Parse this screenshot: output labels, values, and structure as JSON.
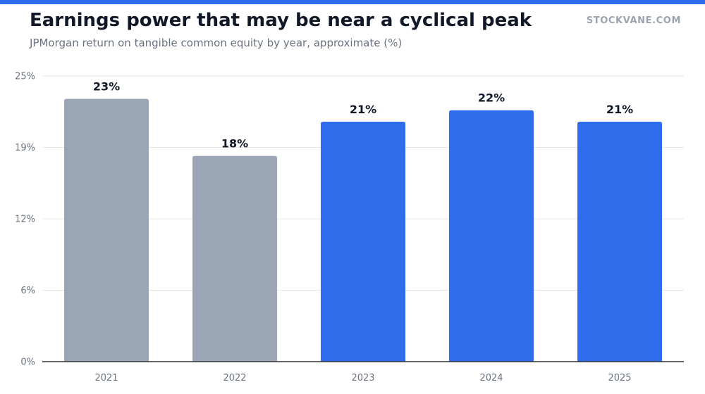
{
  "header": {
    "title": "Earnings power that may be near a cyclical peak",
    "subtitle": "JPMorgan return on tangible common equity by year, approximate (%)",
    "brand": "STOCKVANE.COM"
  },
  "colors": {
    "accent": "#2f6ded",
    "historical": "#9aa6b5",
    "recent": "#2f6ded",
    "grid": "#e5e7eb",
    "axis": "#333333"
  },
  "chart_data": {
    "type": "bar",
    "title": "Earnings power that may be near a cyclical peak",
    "subtitle": "JPMorgan return on tangible common equity by year, approximate (%)",
    "xlabel": "",
    "ylabel": "",
    "categories": [
      "2021",
      "2022",
      "2023",
      "2024",
      "2025"
    ],
    "values": [
      23,
      18,
      21,
      22,
      21
    ],
    "data_labels": [
      "23%",
      "18%",
      "21%",
      "22%",
      "21%"
    ],
    "bar_color_groups": [
      "historical",
      "historical",
      "recent",
      "recent",
      "recent"
    ],
    "y_ticks": [
      0,
      6.25,
      12.5,
      18.75,
      25
    ],
    "y_tick_labels": [
      "0%",
      "6%",
      "12%",
      "19%",
      "25%"
    ],
    "ylim": [
      0,
      25
    ],
    "grid": true,
    "legend": "none"
  }
}
